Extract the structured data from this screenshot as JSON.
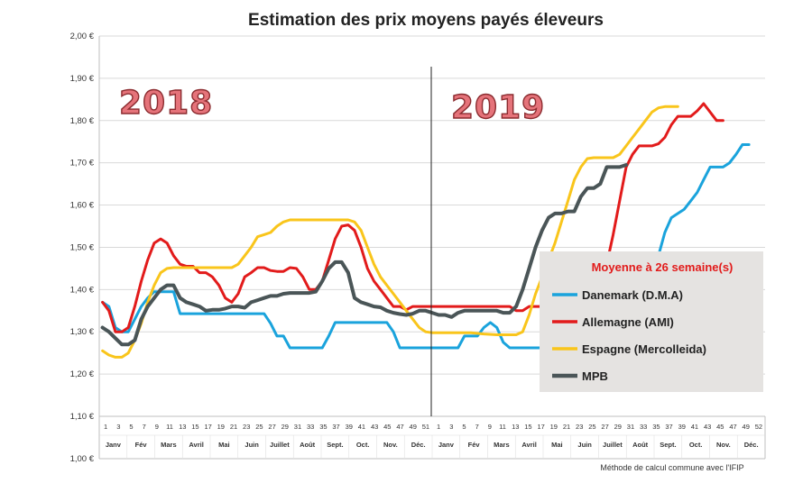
{
  "chart_data": {
    "type": "line",
    "title": "Estimation des prix moyens payés éleveurs",
    "y_ticks": [
      "1,00 €",
      "1,10 €",
      "1,20 €",
      "1,30 €",
      "1,40 €",
      "1,50 €",
      "1,60 €",
      "1,70 €",
      "1,80 €",
      "1,90 €",
      "2,00 €"
    ],
    "ylim": [
      1.1,
      2.0
    ],
    "week_ticks": [
      "1",
      "3",
      "5",
      "7",
      "9",
      "11",
      "13",
      "15",
      "17",
      "19",
      "21",
      "23",
      "25",
      "27",
      "29",
      "31",
      "33",
      "35",
      "37",
      "39",
      "41",
      "43",
      "45",
      "47",
      "49",
      "51",
      "1",
      "3",
      "5",
      "7",
      "9",
      "11",
      "13",
      "15",
      "17",
      "19",
      "21",
      "23",
      "25",
      "27",
      "29",
      "31",
      "33",
      "35",
      "37",
      "39",
      "41",
      "43",
      "45",
      "47",
      "49",
      "52"
    ],
    "months": [
      "Janv",
      "Fév",
      "Mars",
      "Avril",
      "Mai",
      "Juin",
      "Juillet",
      "Août",
      "Sept.",
      "Oct.",
      "Nov.",
      "Déc.",
      "Janv",
      "Fév",
      "Mars",
      "Avril",
      "Mai",
      "Juin",
      "Juillet",
      "Août",
      "Sept.",
      "Oct.",
      "Nov.",
      "Déc."
    ],
    "years": [
      "2018",
      "2019"
    ],
    "legend_title": "Moyenne à  26 semaine(s)",
    "legend_placement": "right",
    "grid": true,
    "note": "Méthode de calcul commune avec l'IFIP",
    "series": [
      {
        "name": "Danemark (D.M.A)",
        "color": "#1aa3dc",
        "points": [
          [
            1,
            1.37
          ],
          [
            2,
            1.36
          ],
          [
            3,
            1.31
          ],
          [
            4,
            1.3
          ],
          [
            5,
            1.3
          ],
          [
            6,
            1.33
          ],
          [
            7,
            1.36
          ],
          [
            8,
            1.38
          ],
          [
            9,
            1.395
          ],
          [
            10,
            1.395
          ],
          [
            11,
            1.395
          ],
          [
            12,
            1.395
          ],
          [
            13,
            1.343
          ],
          [
            20,
            1.343
          ],
          [
            26,
            1.343
          ],
          [
            27,
            1.32
          ],
          [
            28,
            1.29
          ],
          [
            29,
            1.29
          ],
          [
            30,
            1.262
          ],
          [
            35,
            1.262
          ],
          [
            36,
            1.29
          ],
          [
            37,
            1.322
          ],
          [
            45,
            1.322
          ],
          [
            46,
            1.3
          ],
          [
            47,
            1.262
          ],
          [
            56,
            1.262
          ],
          [
            57,
            1.29
          ],
          [
            59,
            1.29
          ],
          [
            60,
            1.31
          ],
          [
            61,
            1.322
          ],
          [
            62,
            1.31
          ],
          [
            63,
            1.275
          ],
          [
            64,
            1.262
          ],
          [
            75,
            1.262
          ],
          [
            76,
            1.29
          ],
          [
            81,
            1.29
          ],
          [
            82,
            1.31
          ],
          [
            83,
            1.33
          ],
          [
            84,
            1.35
          ],
          [
            85,
            1.38
          ],
          [
            86,
            1.43
          ],
          [
            87,
            1.48
          ],
          [
            88,
            1.535
          ],
          [
            89,
            1.57
          ],
          [
            90,
            1.58
          ],
          [
            91,
            1.59
          ],
          [
            92,
            1.61
          ],
          [
            93,
            1.63
          ],
          [
            94,
            1.66
          ],
          [
            95,
            1.69
          ],
          [
            97,
            1.69
          ],
          [
            98,
            1.7
          ],
          [
            99,
            1.72
          ],
          [
            100,
            1.743
          ],
          [
            101,
            1.743
          ]
        ]
      },
      {
        "name": "Allemagne (AMI)",
        "color": "#e21b1b",
        "points": [
          [
            1,
            1.37
          ],
          [
            2,
            1.35
          ],
          [
            3,
            1.3
          ],
          [
            4,
            1.3
          ],
          [
            5,
            1.31
          ],
          [
            6,
            1.36
          ],
          [
            7,
            1.42
          ],
          [
            8,
            1.47
          ],
          [
            9,
            1.51
          ],
          [
            10,
            1.52
          ],
          [
            11,
            1.51
          ],
          [
            12,
            1.48
          ],
          [
            13,
            1.46
          ],
          [
            14,
            1.455
          ],
          [
            15,
            1.455
          ],
          [
            16,
            1.44
          ],
          [
            17,
            1.44
          ],
          [
            18,
            1.43
          ],
          [
            19,
            1.41
          ],
          [
            20,
            1.38
          ],
          [
            21,
            1.37
          ],
          [
            22,
            1.39
          ],
          [
            23,
            1.43
          ],
          [
            24,
            1.44
          ],
          [
            25,
            1.452
          ],
          [
            26,
            1.452
          ],
          [
            27,
            1.445
          ],
          [
            28,
            1.443
          ],
          [
            29,
            1.443
          ],
          [
            30,
            1.452
          ],
          [
            31,
            1.45
          ],
          [
            32,
            1.43
          ],
          [
            33,
            1.4
          ],
          [
            34,
            1.4
          ],
          [
            35,
            1.42
          ],
          [
            36,
            1.47
          ],
          [
            37,
            1.52
          ],
          [
            38,
            1.55
          ],
          [
            39,
            1.553
          ],
          [
            40,
            1.54
          ],
          [
            41,
            1.5
          ],
          [
            42,
            1.45
          ],
          [
            43,
            1.42
          ],
          [
            44,
            1.4
          ],
          [
            45,
            1.38
          ],
          [
            46,
            1.36
          ],
          [
            47,
            1.36
          ],
          [
            48,
            1.352
          ],
          [
            49,
            1.36
          ],
          [
            50,
            1.36
          ],
          [
            60,
            1.36
          ],
          [
            64,
            1.36
          ],
          [
            65,
            1.35
          ],
          [
            66,
            1.35
          ],
          [
            67,
            1.36
          ],
          [
            71,
            1.36
          ],
          [
            72,
            1.38
          ],
          [
            73,
            1.39
          ],
          [
            74,
            1.4
          ],
          [
            75,
            1.4
          ],
          [
            76,
            1.4
          ],
          [
            77,
            1.41
          ],
          [
            78,
            1.42
          ],
          [
            79,
            1.46
          ],
          [
            80,
            1.53
          ],
          [
            81,
            1.61
          ],
          [
            82,
            1.69
          ],
          [
            83,
            1.72
          ],
          [
            84,
            1.74
          ],
          [
            86,
            1.74
          ],
          [
            87,
            1.745
          ],
          [
            88,
            1.76
          ],
          [
            89,
            1.79
          ],
          [
            90,
            1.81
          ],
          [
            92,
            1.81
          ],
          [
            93,
            1.823
          ],
          [
            94,
            1.84
          ],
          [
            95,
            1.82
          ],
          [
            96,
            1.8
          ],
          [
            97,
            1.8
          ]
        ]
      },
      {
        "name": "Espagne (Mercolleida)",
        "color": "#f9c51b",
        "points": [
          [
            1,
            1.255
          ],
          [
            2,
            1.245
          ],
          [
            3,
            1.24
          ],
          [
            4,
            1.24
          ],
          [
            5,
            1.25
          ],
          [
            6,
            1.28
          ],
          [
            7,
            1.32
          ],
          [
            8,
            1.37
          ],
          [
            9,
            1.41
          ],
          [
            10,
            1.44
          ],
          [
            11,
            1.45
          ],
          [
            12,
            1.452
          ],
          [
            20,
            1.452
          ],
          [
            21,
            1.452
          ],
          [
            22,
            1.46
          ],
          [
            23,
            1.48
          ],
          [
            24,
            1.5
          ],
          [
            25,
            1.525
          ],
          [
            26,
            1.53
          ],
          [
            27,
            1.535
          ],
          [
            28,
            1.55
          ],
          [
            29,
            1.56
          ],
          [
            30,
            1.565
          ],
          [
            39,
            1.565
          ],
          [
            40,
            1.56
          ],
          [
            41,
            1.54
          ],
          [
            42,
            1.5
          ],
          [
            43,
            1.46
          ],
          [
            44,
            1.43
          ],
          [
            45,
            1.41
          ],
          [
            46,
            1.39
          ],
          [
            47,
            1.37
          ],
          [
            48,
            1.35
          ],
          [
            49,
            1.33
          ],
          [
            50,
            1.31
          ],
          [
            51,
            1.3
          ],
          [
            52,
            1.298
          ],
          [
            58,
            1.298
          ],
          [
            60,
            1.295
          ],
          [
            62,
            1.293
          ],
          [
            65,
            1.293
          ],
          [
            66,
            1.3
          ],
          [
            67,
            1.34
          ],
          [
            68,
            1.39
          ],
          [
            69,
            1.43
          ],
          [
            70,
            1.47
          ],
          [
            71,
            1.51
          ],
          [
            72,
            1.56
          ],
          [
            73,
            1.61
          ],
          [
            74,
            1.66
          ],
          [
            75,
            1.69
          ],
          [
            76,
            1.71
          ],
          [
            77,
            1.712
          ],
          [
            80,
            1.712
          ],
          [
            81,
            1.72
          ],
          [
            82,
            1.74
          ],
          [
            83,
            1.76
          ],
          [
            84,
            1.78
          ],
          [
            85,
            1.8
          ],
          [
            86,
            1.82
          ],
          [
            87,
            1.83
          ],
          [
            88,
            1.833
          ],
          [
            90,
            1.833
          ]
        ]
      },
      {
        "name": "MPB",
        "color": "#4a5557",
        "points": [
          [
            1,
            1.31
          ],
          [
            2,
            1.3
          ],
          [
            3,
            1.285
          ],
          [
            4,
            1.27
          ],
          [
            5,
            1.27
          ],
          [
            6,
            1.28
          ],
          [
            7,
            1.33
          ],
          [
            8,
            1.36
          ],
          [
            9,
            1.38
          ],
          [
            10,
            1.4
          ],
          [
            11,
            1.41
          ],
          [
            12,
            1.41
          ],
          [
            13,
            1.38
          ],
          [
            14,
            1.37
          ],
          [
            15,
            1.365
          ],
          [
            16,
            1.36
          ],
          [
            17,
            1.35
          ],
          [
            18,
            1.352
          ],
          [
            19,
            1.352
          ],
          [
            20,
            1.355
          ],
          [
            21,
            1.36
          ],
          [
            22,
            1.36
          ],
          [
            23,
            1.357
          ],
          [
            24,
            1.37
          ],
          [
            25,
            1.375
          ],
          [
            26,
            1.38
          ],
          [
            27,
            1.385
          ],
          [
            28,
            1.385
          ],
          [
            29,
            1.39
          ],
          [
            30,
            1.392
          ],
          [
            33,
            1.392
          ],
          [
            34,
            1.395
          ],
          [
            35,
            1.42
          ],
          [
            36,
            1.45
          ],
          [
            37,
            1.465
          ],
          [
            38,
            1.465
          ],
          [
            39,
            1.44
          ],
          [
            40,
            1.38
          ],
          [
            41,
            1.37
          ],
          [
            42,
            1.365
          ],
          [
            43,
            1.36
          ],
          [
            44,
            1.358
          ],
          [
            45,
            1.35
          ],
          [
            46,
            1.345
          ],
          [
            47,
            1.342
          ],
          [
            48,
            1.34
          ],
          [
            49,
            1.343
          ],
          [
            50,
            1.35
          ],
          [
            51,
            1.35
          ],
          [
            52,
            1.345
          ],
          [
            53,
            1.34
          ],
          [
            54,
            1.34
          ],
          [
            55,
            1.335
          ],
          [
            56,
            1.345
          ],
          [
            57,
            1.35
          ],
          [
            58,
            1.35
          ],
          [
            59,
            1.35
          ],
          [
            60,
            1.35
          ],
          [
            61,
            1.35
          ],
          [
            62,
            1.35
          ],
          [
            63,
            1.345
          ],
          [
            64,
            1.345
          ],
          [
            65,
            1.36
          ],
          [
            66,
            1.4
          ],
          [
            67,
            1.45
          ],
          [
            68,
            1.5
          ],
          [
            69,
            1.54
          ],
          [
            70,
            1.57
          ],
          [
            71,
            1.58
          ],
          [
            72,
            1.58
          ],
          [
            73,
            1.585
          ],
          [
            74,
            1.585
          ],
          [
            75,
            1.62
          ],
          [
            76,
            1.64
          ],
          [
            77,
            1.64
          ],
          [
            78,
            1.65
          ],
          [
            79,
            1.69
          ],
          [
            80,
            1.69
          ],
          [
            81,
            1.69
          ],
          [
            82,
            1.695
          ]
        ]
      }
    ]
  }
}
